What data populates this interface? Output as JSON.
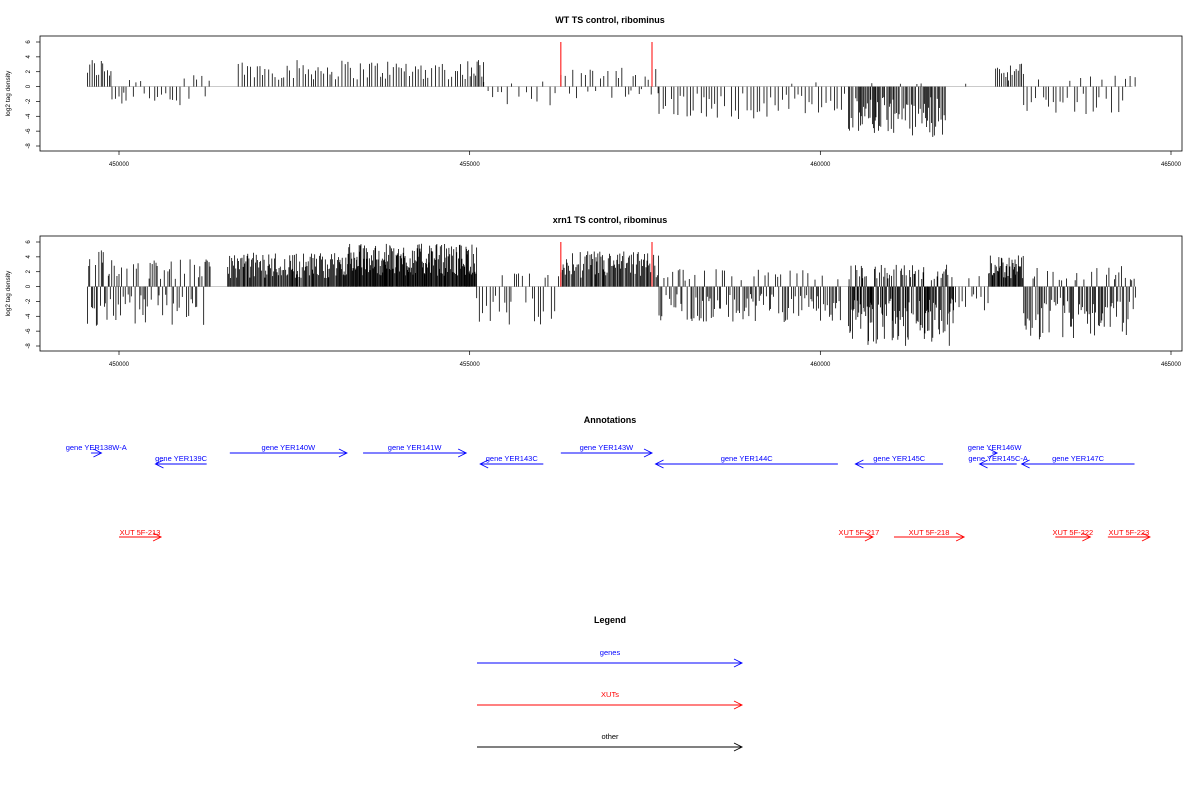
{
  "chart_data": [
    {
      "type": "bar",
      "title": "WT TS control, ribominus",
      "ylabel": "log2 tag density",
      "ylim": [
        -8,
        6
      ],
      "yticks": [
        6,
        4,
        2,
        0,
        -2,
        -4,
        -6,
        -8
      ],
      "xlim": [
        449500,
        464500
      ],
      "xticks": [
        450000,
        455000,
        460000,
        465000
      ],
      "highlight_color": "#ff0000",
      "highlights": [
        {
          "x": 456300,
          "value": 6
        },
        {
          "x": 457600,
          "value": 6
        }
      ],
      "segments": [
        {
          "start": 449550,
          "end": 449900,
          "max": 3.9,
          "min": -0.5,
          "step": 30
        },
        {
          "start": 449900,
          "end": 450100,
          "max": 0.8,
          "min": -3.0,
          "step": 40
        },
        {
          "start": 450100,
          "end": 451300,
          "max": 1.6,
          "min": -2.5,
          "step": 60
        },
        {
          "start": 451700,
          "end": 454900,
          "max": 3.6,
          "min": -1.4,
          "step": 40
        },
        {
          "start": 454900,
          "end": 455200,
          "max": 3.8,
          "min": -0.5,
          "step": 30
        },
        {
          "start": 455200,
          "end": 456300,
          "max": 1.0,
          "min": -2.8,
          "step": 80
        },
        {
          "start": 456300,
          "end": 457700,
          "max": 2.6,
          "min": -1.6,
          "step": 50
        },
        {
          "start": 457700,
          "end": 460400,
          "max": 0.6,
          "min": -4.4,
          "step": 45
        },
        {
          "start": 460400,
          "end": 461800,
          "max": 0.5,
          "min": -6.8,
          "step": 18
        },
        {
          "start": 461800,
          "end": 462400,
          "max": 0.4,
          "min": -1.2,
          "step": 80
        },
        {
          "start": 462500,
          "end": 462900,
          "max": 3.2,
          "min": -0.4,
          "step": 25
        },
        {
          "start": 462900,
          "end": 464500,
          "max": 1.8,
          "min": -3.8,
          "step": 55
        }
      ]
    },
    {
      "type": "bar",
      "title": "xrn1 TS control, ribominus",
      "ylabel": "log2 tag density",
      "ylim": [
        -8,
        6
      ],
      "yticks": [
        6,
        4,
        2,
        0,
        -2,
        -4,
        -6,
        -8
      ],
      "xlim": [
        449500,
        464500
      ],
      "xticks": [
        450000,
        455000,
        460000,
        465000
      ],
      "highlight_color": "#ff0000",
      "highlights": [
        {
          "x": 456300,
          "value": 6
        },
        {
          "x": 457600,
          "value": 6
        }
      ],
      "segments": [
        {
          "start": 449550,
          "end": 450000,
          "max": 5.0,
          "min": -5.6,
          "step": 18
        },
        {
          "start": 450000,
          "end": 451300,
          "max": 3.8,
          "min": -5.2,
          "step": 22
        },
        {
          "start": 451550,
          "end": 453200,
          "max": 4.6,
          "min": -1.2,
          "step": 14
        },
        {
          "start": 453200,
          "end": 455100,
          "max": 5.8,
          "min": -1.0,
          "step": 10
        },
        {
          "start": 455100,
          "end": 456300,
          "max": 1.8,
          "min": -5.2,
          "step": 40
        },
        {
          "start": 456300,
          "end": 457700,
          "max": 4.8,
          "min": -1.2,
          "step": 16
        },
        {
          "start": 457700,
          "end": 460300,
          "max": 2.4,
          "min": -4.8,
          "step": 22
        },
        {
          "start": 460400,
          "end": 461900,
          "max": 3.0,
          "min": -8.0,
          "step": 10
        },
        {
          "start": 461900,
          "end": 462400,
          "max": 1.6,
          "min": -3.2,
          "step": 40
        },
        {
          "start": 462400,
          "end": 462900,
          "max": 4.2,
          "min": -0.6,
          "step": 12
        },
        {
          "start": 462900,
          "end": 464500,
          "max": 2.8,
          "min": -7.2,
          "step": 18
        }
      ]
    }
  ],
  "annotations": {
    "title": "Annotations",
    "genes": [
      {
        "label": "gene YER138W-A",
        "x1": 449600,
        "x2": 449750,
        "dir": "right",
        "row": 0
      },
      {
        "label": "gene YER139C",
        "x1": 450520,
        "x2": 451250,
        "dir": "left",
        "row": 1
      },
      {
        "label": "gene YER140W",
        "x1": 451580,
        "x2": 453250,
        "dir": "right",
        "row": 0
      },
      {
        "label": "gene YER141W",
        "x1": 453480,
        "x2": 454950,
        "dir": "right",
        "row": 0
      },
      {
        "label": "gene YER143C",
        "x1": 455150,
        "x2": 456050,
        "dir": "left",
        "row": 1
      },
      {
        "label": "gene YER143W",
        "x1": 456300,
        "x2": 457600,
        "dir": "right",
        "row": 0
      },
      {
        "label": "gene YER144C",
        "x1": 457650,
        "x2": 460250,
        "dir": "left",
        "row": 1
      },
      {
        "label": "gene YER145C",
        "x1": 460500,
        "x2": 461750,
        "dir": "left",
        "row": 1
      },
      {
        "label": "gene YER146W",
        "x1": 462450,
        "x2": 462520,
        "dir": "right",
        "row": 0
      },
      {
        "label": "gene YER145C-A",
        "x1": 462270,
        "x2": 462800,
        "dir": "left",
        "row": 1
      },
      {
        "label": "gene YER147C",
        "x1": 462870,
        "x2": 464480,
        "dir": "left",
        "row": 1
      }
    ],
    "xuts": [
      {
        "label": "XUT 5F-213",
        "x1": 450000,
        "x2": 450600,
        "dir": "right"
      },
      {
        "label": "XUT 5F-217",
        "x1": 460350,
        "x2": 460750,
        "dir": "right"
      },
      {
        "label": "XUT 5F-218",
        "x1": 461050,
        "x2": 462050,
        "dir": "right"
      },
      {
        "label": "XUT 5F-222",
        "x1": 463350,
        "x2": 463850,
        "dir": "right"
      },
      {
        "label": "XUT 5F-223",
        "x1": 464100,
        "x2": 464700,
        "dir": "right"
      }
    ]
  },
  "legend": {
    "title": "Legend",
    "items": [
      {
        "label": "genes",
        "color": "#0000ff"
      },
      {
        "label": "XUTs",
        "color": "#ff0000"
      },
      {
        "label": "other",
        "color": "#000000"
      }
    ]
  },
  "colors": {
    "gene": "#0000ff",
    "xut": "#ff0000",
    "bars": "#000000",
    "zero": "#aaaaaa"
  }
}
